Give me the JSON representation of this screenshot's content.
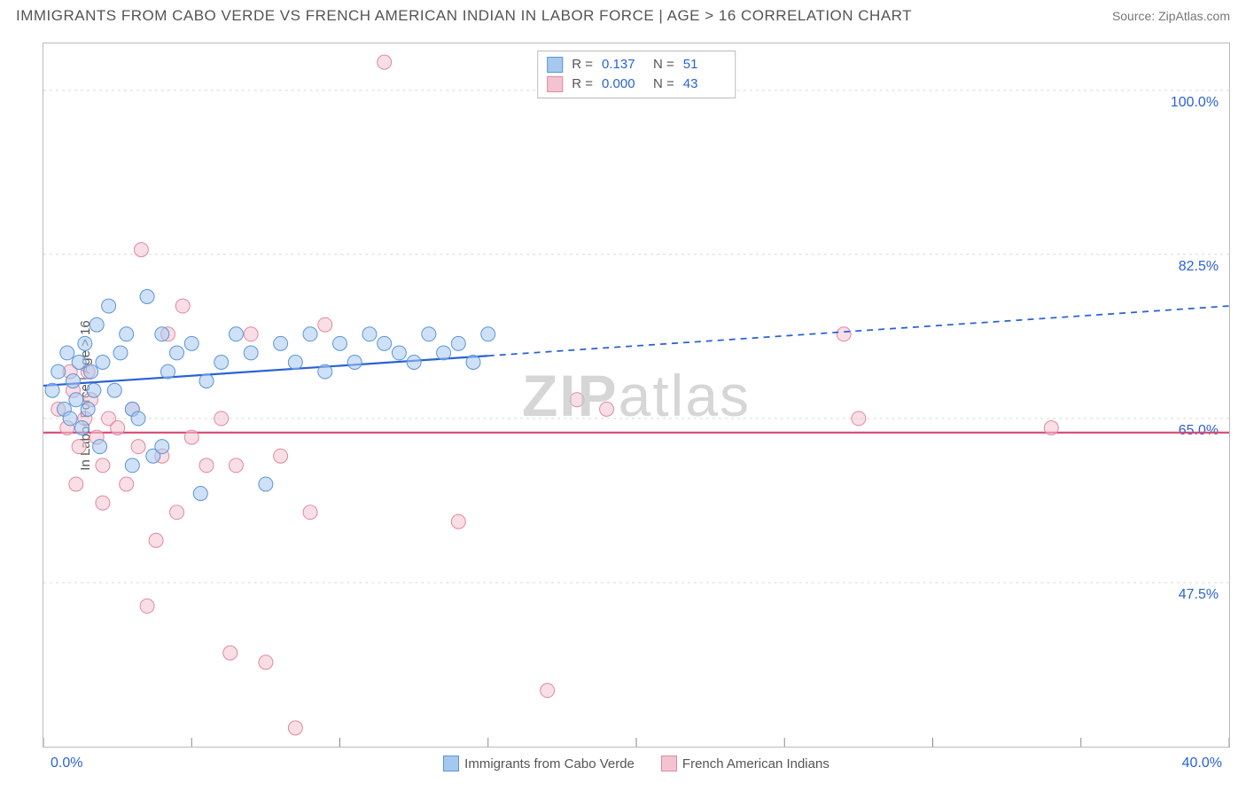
{
  "title": "IMMIGRANTS FROM CABO VERDE VS FRENCH AMERICAN INDIAN IN LABOR FORCE | AGE > 16 CORRELATION CHART",
  "source": "Source: ZipAtlas.com",
  "y_axis_title": "In Labor Force | Age > 16",
  "watermark": "ZIPatlas",
  "chart": {
    "type": "scatter-correlation",
    "background_color": "#ffffff",
    "border_color": "#bbbbbb",
    "grid_color": "#d8d8d8",
    "axis_value_color": "#2962d6",
    "text_color": "#555555",
    "title_fontsize": 17,
    "label_fontsize": 15,
    "tick_fontsize": 16,
    "xlim": [
      0,
      40
    ],
    "ylim": [
      30,
      105
    ],
    "x_ticks": [
      0,
      5,
      10,
      15,
      20,
      25,
      30,
      35,
      40
    ],
    "x_tick_labels_shown": {
      "0": "0.0%",
      "40": "40.0%"
    },
    "y_gridlines": [
      47.5,
      65.0,
      82.5,
      100.0
    ],
    "y_tick_labels": [
      "47.5%",
      "65.0%",
      "82.5%",
      "100.0%"
    ],
    "marker_radius": 8,
    "marker_opacity": 0.55,
    "line_width": 2.2,
    "series": [
      {
        "name": "Immigrants from Cabo Verde",
        "color_fill": "#a7c8ee",
        "color_stroke": "#5a94da",
        "trend_color": "#2962d6",
        "R": "0.137",
        "N": "51",
        "trend": {
          "y_at_x0": 68.5,
          "y_at_x40": 77.0,
          "solid_until_x": 15,
          "dashed_after": true
        },
        "points": [
          [
            0.3,
            68
          ],
          [
            0.5,
            70
          ],
          [
            0.7,
            66
          ],
          [
            0.8,
            72
          ],
          [
            0.9,
            65
          ],
          [
            1.0,
            69
          ],
          [
            1.1,
            67
          ],
          [
            1.2,
            71
          ],
          [
            1.3,
            64
          ],
          [
            1.4,
            73
          ],
          [
            1.5,
            66
          ],
          [
            1.6,
            70
          ],
          [
            1.7,
            68
          ],
          [
            1.8,
            75
          ],
          [
            1.9,
            62
          ],
          [
            2.0,
            71
          ],
          [
            2.2,
            77
          ],
          [
            2.4,
            68
          ],
          [
            2.6,
            72
          ],
          [
            2.8,
            74
          ],
          [
            3.0,
            66
          ],
          [
            3.2,
            65
          ],
          [
            3.5,
            78
          ],
          [
            3.7,
            61
          ],
          [
            4.0,
            74
          ],
          [
            4.2,
            70
          ],
          [
            4.5,
            72
          ],
          [
            5.0,
            73
          ],
          [
            5.3,
            57
          ],
          [
            5.5,
            69
          ],
          [
            6.0,
            71
          ],
          [
            6.5,
            74
          ],
          [
            7.0,
            72
          ],
          [
            7.5,
            58
          ],
          [
            8.0,
            73
          ],
          [
            8.5,
            71
          ],
          [
            9.0,
            74
          ],
          [
            9.5,
            70
          ],
          [
            10.0,
            73
          ],
          [
            10.5,
            71
          ],
          [
            11.0,
            74
          ],
          [
            11.5,
            73
          ],
          [
            12.0,
            72
          ],
          [
            12.5,
            71
          ],
          [
            13.0,
            74
          ],
          [
            13.5,
            72
          ],
          [
            14.0,
            73
          ],
          [
            14.5,
            71
          ],
          [
            15.0,
            74
          ],
          [
            3.0,
            60
          ],
          [
            4.0,
            62
          ]
        ]
      },
      {
        "name": "French American Indians",
        "color_fill": "#f3c4d0",
        "color_stroke": "#e486a2",
        "trend_color": "#d84873",
        "R": "0.000",
        "N": "43",
        "trend": {
          "y_at_x0": 63.5,
          "y_at_x40": 63.5,
          "solid_until_x": 40,
          "dashed_after": false
        },
        "points": [
          [
            0.5,
            66
          ],
          [
            0.8,
            64
          ],
          [
            1.0,
            68
          ],
          [
            1.2,
            62
          ],
          [
            1.4,
            65
          ],
          [
            1.6,
            67
          ],
          [
            1.8,
            63
          ],
          [
            2.0,
            60
          ],
          [
            2.2,
            65
          ],
          [
            2.5,
            64
          ],
          [
            2.8,
            58
          ],
          [
            3.0,
            66
          ],
          [
            3.3,
            83
          ],
          [
            3.5,
            45
          ],
          [
            4.0,
            61
          ],
          [
            4.2,
            74
          ],
          [
            4.5,
            55
          ],
          [
            4.7,
            77
          ],
          [
            5.0,
            63
          ],
          [
            5.5,
            60
          ],
          [
            6.0,
            65
          ],
          [
            6.3,
            40
          ],
          [
            6.5,
            60
          ],
          [
            7.0,
            74
          ],
          [
            7.5,
            39
          ],
          [
            8.0,
            61
          ],
          [
            8.5,
            32
          ],
          [
            9.0,
            55
          ],
          [
            9.5,
            75
          ],
          [
            11.5,
            103
          ],
          [
            14.0,
            54
          ],
          [
            17.0,
            36
          ],
          [
            18.0,
            67
          ],
          [
            19.0,
            66
          ],
          [
            27.0,
            74
          ],
          [
            27.5,
            65
          ],
          [
            34.0,
            64
          ],
          [
            3.8,
            52
          ],
          [
            2.0,
            56
          ],
          [
            1.5,
            70
          ],
          [
            0.9,
            70
          ],
          [
            1.1,
            58
          ],
          [
            3.2,
            62
          ]
        ]
      }
    ]
  },
  "bottom_legend": [
    {
      "label": "Immigrants from Cabo Verde",
      "fill": "#a7c8ee",
      "stroke": "#5a94da"
    },
    {
      "label": "French American Indians",
      "fill": "#f3c4d0",
      "stroke": "#e486a2"
    }
  ]
}
